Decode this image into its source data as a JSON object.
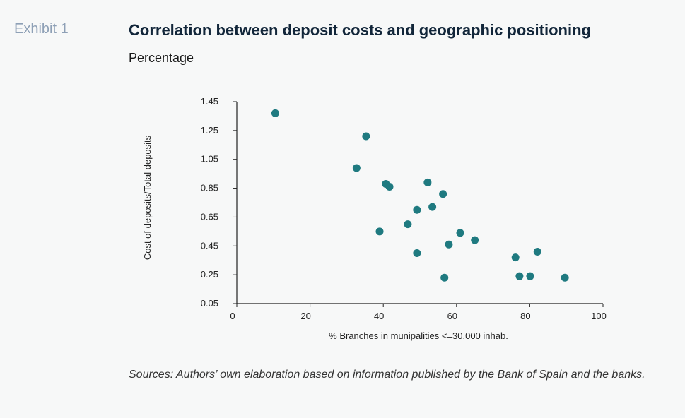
{
  "header": {
    "exhibit": "Exhibit 1",
    "title": "Correlation between deposit costs and geographic positioning",
    "subtitle": "Percentage"
  },
  "footer": {
    "sources": "Sources: Authors’ own elaboration based on information published by the Bank of Spain and the banks."
  },
  "colors": {
    "point": "#1f7a80",
    "axis": "#222222"
  },
  "chart_data": {
    "type": "scatter",
    "title": "Correlation between deposit costs and geographic positioning",
    "subtitle": "Percentage",
    "xlabel": "% Branches in munipalities <=30,000 inhab.",
    "ylabel": "Cost of deposits/Total deposits",
    "xlim": [
      0,
      100
    ],
    "ylim": [
      0.05,
      1.45
    ],
    "xticks": [
      0,
      20,
      40,
      60,
      80,
      100
    ],
    "yticks": [
      0.05,
      0.25,
      0.45,
      0.65,
      0.85,
      1.05,
      1.25,
      1.45
    ],
    "ytick_labels": [
      "0.05",
      "0.25",
      "0.45",
      "0.65",
      "0.85",
      "1.05",
      "1.25",
      "1.45"
    ],
    "grid": false,
    "legend": "none",
    "series": [
      {
        "points": [
          {
            "x": 10.5,
            "y": 1.37
          },
          {
            "x": 35.3,
            "y": 1.21
          },
          {
            "x": 32.7,
            "y": 0.99
          },
          {
            "x": 40.7,
            "y": 0.88
          },
          {
            "x": 41.7,
            "y": 0.86
          },
          {
            "x": 52.1,
            "y": 0.89
          },
          {
            "x": 56.3,
            "y": 0.81
          },
          {
            "x": 49.2,
            "y": 0.7
          },
          {
            "x": 53.4,
            "y": 0.72
          },
          {
            "x": 39.0,
            "y": 0.55
          },
          {
            "x": 46.7,
            "y": 0.6
          },
          {
            "x": 61.0,
            "y": 0.54
          },
          {
            "x": 65.0,
            "y": 0.49
          },
          {
            "x": 57.9,
            "y": 0.46
          },
          {
            "x": 49.2,
            "y": 0.4
          },
          {
            "x": 56.7,
            "y": 0.23
          },
          {
            "x": 76.1,
            "y": 0.37
          },
          {
            "x": 82.1,
            "y": 0.41
          },
          {
            "x": 77.2,
            "y": 0.24
          },
          {
            "x": 80.1,
            "y": 0.24
          },
          {
            "x": 89.6,
            "y": 0.23
          }
        ]
      }
    ]
  }
}
